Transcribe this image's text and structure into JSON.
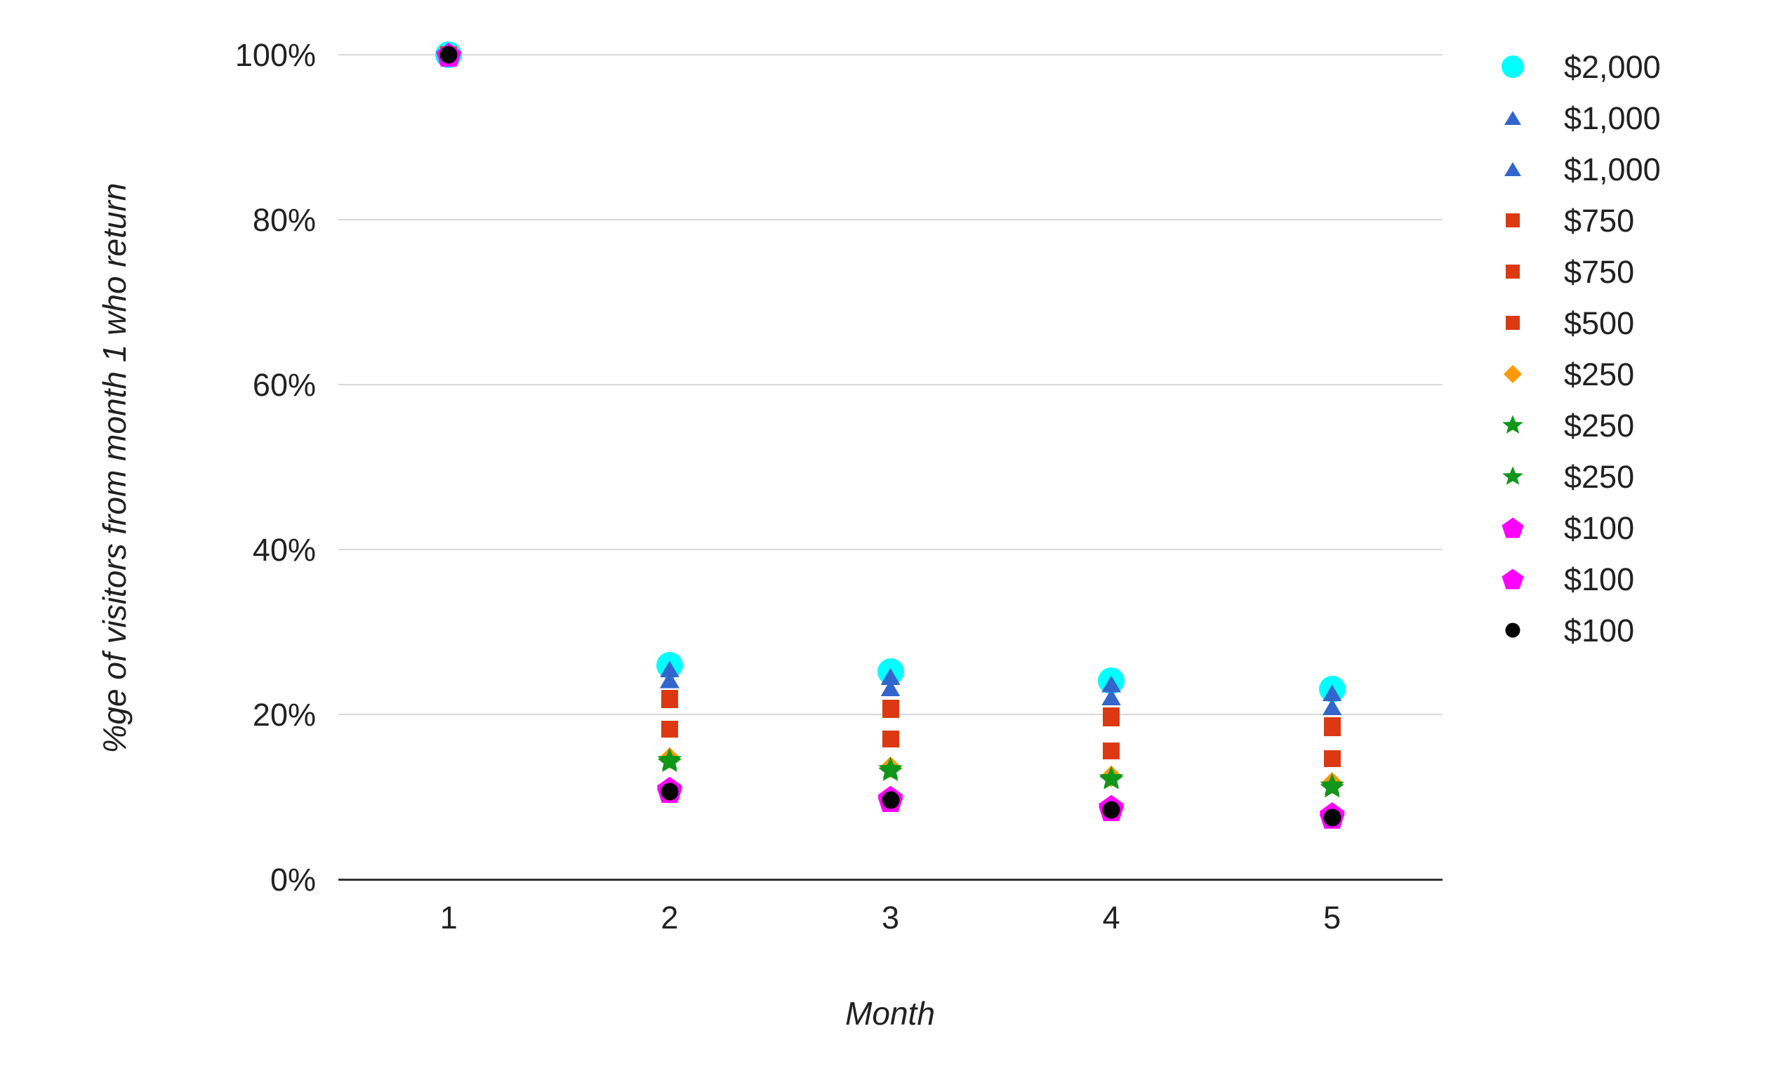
{
  "colors": {
    "background": "#ffffff",
    "grid": "#d9d9d9",
    "axis": "#333333",
    "text": "#212121",
    "cyan": "#00ffff",
    "blue": "#3366cc",
    "red": "#dc3912",
    "orange": "#ff9900",
    "green": "#109618",
    "magenta": "#ff00ff",
    "black": "#000000"
  },
  "chart_data": {
    "type": "scatter",
    "title": "",
    "xlabel": "Month",
    "ylabel": "%ge of visitors from month 1 who return",
    "x": [
      1,
      2,
      3,
      4,
      5
    ],
    "xtick_labels": [
      "1",
      "2",
      "3",
      "4",
      "5"
    ],
    "ylim": [
      0,
      100
    ],
    "yticks": [
      0,
      20,
      40,
      60,
      80,
      100
    ],
    "ytick_labels": [
      "0%",
      "20%",
      "40%",
      "60%",
      "80%",
      "100%"
    ],
    "grid": true,
    "legend_position": "right",
    "series": [
      {
        "name": "$2,000",
        "marker": "circle",
        "marker_icon": "circle-icon",
        "color": "#00ffff",
        "values": [
          100,
          26.0,
          25.2,
          24.1,
          23.1
        ]
      },
      {
        "name": "$1,000",
        "marker": "triangle",
        "marker_icon": "triangle-icon",
        "color": "#3366cc",
        "values": [
          100,
          25.5,
          24.6,
          23.7,
          22.6
        ]
      },
      {
        "name": "$1,000",
        "marker": "triangle",
        "marker_icon": "triangle-icon",
        "color": "#3366cc",
        "values": [
          100,
          24.2,
          23.2,
          22.1,
          20.9
        ]
      },
      {
        "name": "$750",
        "marker": "square",
        "marker_icon": "square-icon",
        "color": "#dc3912",
        "values": [
          100,
          22.0,
          20.8,
          19.8,
          18.6
        ]
      },
      {
        "name": "$750",
        "marker": "square",
        "marker_icon": "square-icon",
        "color": "#dc3912",
        "values": [
          100,
          21.8,
          20.6,
          19.6,
          18.4
        ]
      },
      {
        "name": "$500",
        "marker": "square",
        "marker_icon": "square-icon",
        "color": "#dc3912",
        "values": [
          100,
          18.2,
          17.0,
          15.6,
          14.6
        ]
      },
      {
        "name": "$250",
        "marker": "diamond",
        "marker_icon": "diamond-icon",
        "color": "#ff9900",
        "values": [
          100,
          14.7,
          13.6,
          12.5,
          11.7
        ]
      },
      {
        "name": "$250",
        "marker": "star",
        "marker_icon": "star-icon",
        "color": "#109618",
        "values": [
          100,
          14.5,
          13.4,
          12.3,
          11.4
        ]
      },
      {
        "name": "$250",
        "marker": "star",
        "marker_icon": "star-icon",
        "color": "#109618",
        "values": [
          100,
          14.2,
          13.1,
          12.1,
          11.1
        ]
      },
      {
        "name": "$100",
        "marker": "pentagon",
        "marker_icon": "pentagon-icon",
        "color": "#ff00ff",
        "values": [
          100,
          11.0,
          9.9,
          8.8,
          7.9
        ]
      },
      {
        "name": "$100",
        "marker": "pentagon",
        "marker_icon": "pentagon-icon",
        "color": "#ff00ff",
        "values": [
          100,
          10.7,
          9.6,
          8.5,
          7.6
        ]
      },
      {
        "name": "$100",
        "marker": "circle",
        "marker_icon": "circle-icon",
        "color": "#000000",
        "values": [
          100,
          10.6,
          9.6,
          8.4,
          7.5
        ]
      }
    ]
  }
}
